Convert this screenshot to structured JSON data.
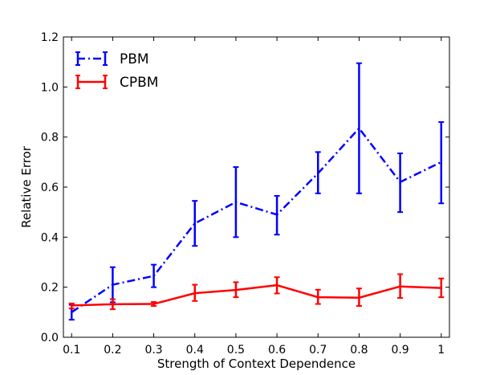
{
  "chart_data": {
    "type": "line",
    "xlabel": "Strength of Context Dependence",
    "ylabel": "Relative Error",
    "xlim": [
      0.08,
      1.02
    ],
    "ylim": [
      0.0,
      1.2
    ],
    "x_ticks": [
      0.1,
      0.2,
      0.3,
      0.4,
      0.5,
      0.6,
      0.7,
      0.8,
      0.9,
      1.0
    ],
    "x_tick_labels": [
      "0.1",
      "0.2",
      "0.3",
      "0.4",
      "0.5",
      "0.6",
      "0.7",
      "0.8",
      "0.9",
      "1"
    ],
    "y_ticks": [
      0.0,
      0.2,
      0.4,
      0.6,
      0.8,
      1.0,
      1.2
    ],
    "y_tick_labels": [
      "0.0",
      "0.2",
      "0.4",
      "0.6",
      "0.8",
      "1.0",
      "1.2"
    ],
    "grid": false,
    "legend_position": "top-left",
    "series": [
      {
        "name": "PBM",
        "color": "#0000ff",
        "line_style": "dash-dot",
        "x": [
          0.1,
          0.2,
          0.3,
          0.4,
          0.5,
          0.6,
          0.7,
          0.8,
          0.9,
          1.0
        ],
        "y": [
          0.1,
          0.21,
          0.245,
          0.455,
          0.54,
          0.49,
          0.655,
          0.835,
          0.62,
          0.7
        ],
        "err_low": [
          0.07,
          0.14,
          0.2,
          0.365,
          0.4,
          0.41,
          0.575,
          0.575,
          0.5,
          0.535
        ],
        "err_high": [
          0.13,
          0.28,
          0.29,
          0.545,
          0.68,
          0.565,
          0.74,
          1.095,
          0.735,
          0.86
        ]
      },
      {
        "name": "CPBM",
        "color": "#ff0000",
        "line_style": "solid",
        "x": [
          0.1,
          0.2,
          0.3,
          0.4,
          0.5,
          0.6,
          0.7,
          0.8,
          0.9,
          1.0
        ],
        "y": [
          0.127,
          0.132,
          0.133,
          0.176,
          0.189,
          0.208,
          0.16,
          0.158,
          0.203,
          0.197
        ],
        "err_low": [
          0.115,
          0.112,
          0.125,
          0.145,
          0.16,
          0.175,
          0.133,
          0.125,
          0.157,
          0.16
        ],
        "err_high": [
          0.135,
          0.152,
          0.141,
          0.21,
          0.22,
          0.24,
          0.19,
          0.195,
          0.252,
          0.235
        ]
      }
    ]
  }
}
